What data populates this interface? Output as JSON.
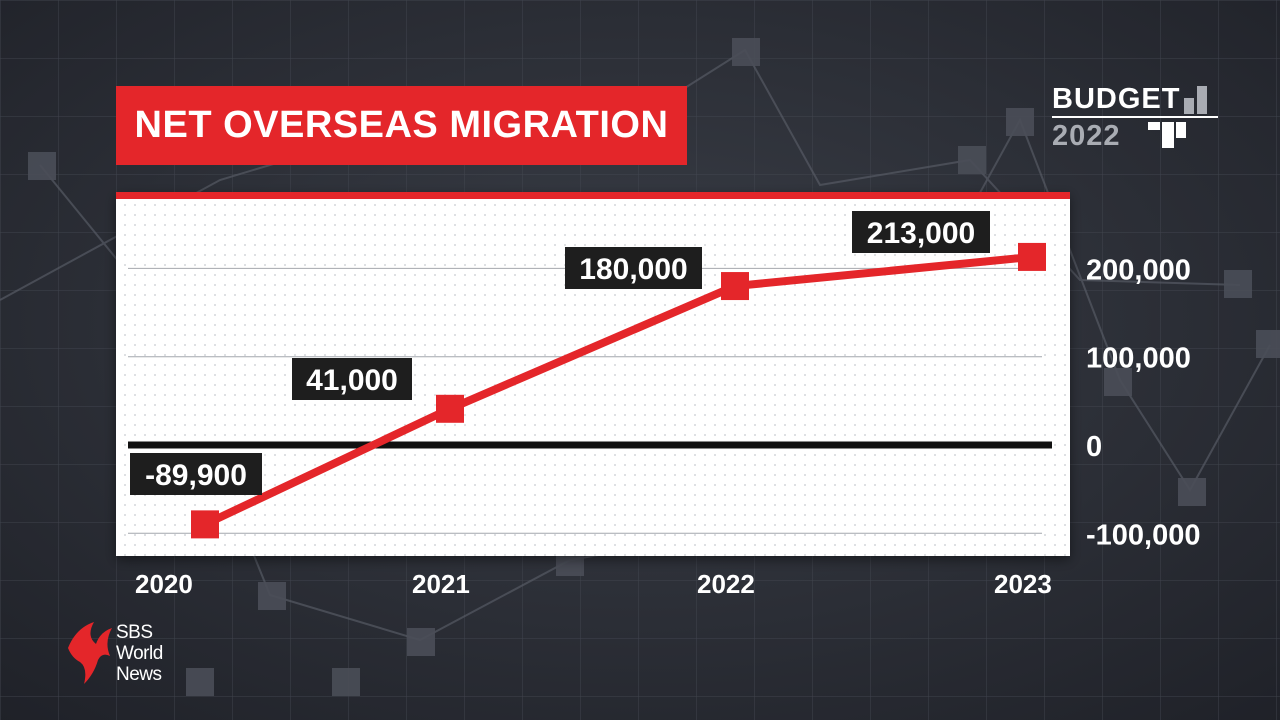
{
  "title": "NET OVERSEAS MIGRATION",
  "badge": {
    "word": "BUDGET",
    "year": "2022"
  },
  "branding": {
    "line1": "SBS",
    "line2": "World",
    "line3": "News"
  },
  "colors": {
    "accent": "#e4262a",
    "background": "#2a2d35",
    "panel": "#ffffff",
    "label_bg": "#1e1e1e"
  },
  "chart_data": {
    "type": "line",
    "title": "NET OVERSEAS MIGRATION",
    "x": [
      "2020",
      "2021",
      "2022",
      "2023"
    ],
    "series": [
      {
        "values": [
          -89900,
          41000,
          180000,
          213000
        ]
      }
    ],
    "data_labels": [
      "-89,900",
      "41,000",
      "180,000",
      "213,000"
    ],
    "y_ticks": [
      200000,
      100000,
      0,
      -100000
    ],
    "y_tick_labels": [
      "200,000",
      "100,000",
      "0",
      "-100,000"
    ],
    "ylim": [
      -100000,
      200000
    ],
    "grid": true,
    "y_axis_side": "right",
    "xlabel": "",
    "ylabel": ""
  }
}
